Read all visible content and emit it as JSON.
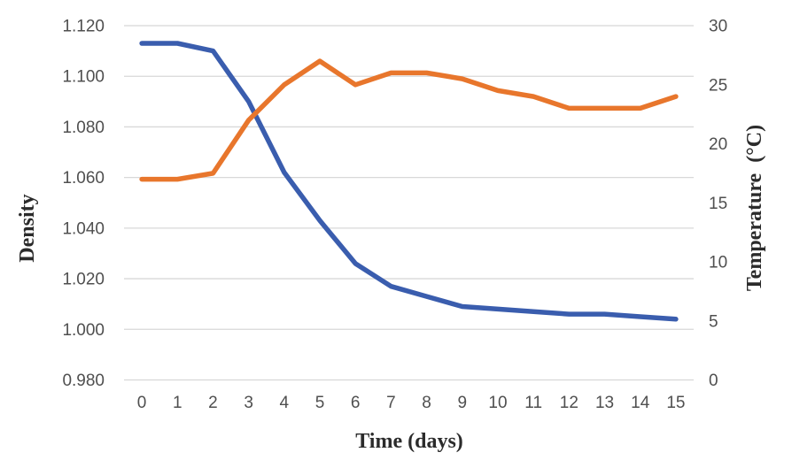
{
  "chart_data": {
    "type": "line",
    "title": "",
    "xlabel": "Time (days)",
    "ylabel_left": "Density",
    "ylabel_right": "Temperature  (°C)",
    "legend": "none",
    "grid": true,
    "x": [
      0,
      1,
      2,
      3,
      4,
      5,
      6,
      7,
      8,
      9,
      10,
      11,
      12,
      13,
      14,
      15
    ],
    "x_tick_labels": [
      "0",
      "1",
      "2",
      "3",
      "4",
      "5",
      "6",
      "7",
      "8",
      "9",
      "10",
      "11",
      "12",
      "13",
      "14",
      "15"
    ],
    "left_axis": {
      "min": 0.98,
      "max": 1.12,
      "tick_labels": [
        "0.980",
        "1.000",
        "1.020",
        "1.040",
        "1.060",
        "1.080",
        "1.100",
        "1.120"
      ]
    },
    "right_axis": {
      "min": 0,
      "max": 30,
      "tick_labels": [
        "0",
        "5",
        "10",
        "15",
        "20",
        "25",
        "30"
      ]
    },
    "series": [
      {
        "name": "Density",
        "axis": "left",
        "color": "#3A5DAE",
        "values": [
          1.113,
          1.113,
          1.11,
          1.09,
          1.062,
          1.043,
          1.026,
          1.017,
          1.013,
          1.009,
          1.008,
          1.007,
          1.006,
          1.006,
          1.005,
          1.004
        ]
      },
      {
        "name": "Temperature",
        "axis": "right",
        "color": "#E8762C",
        "values": [
          17,
          17,
          17.5,
          22,
          25,
          27,
          25,
          26,
          26,
          25.5,
          24.5,
          24,
          23,
          23,
          23,
          24
        ]
      }
    ],
    "style": {
      "gridline_color": "#D8D8D8",
      "tick_label_color": "#4F4F4F",
      "axis_title_color": "#2B2B2B",
      "background_color": "#FFFFFF"
    }
  }
}
